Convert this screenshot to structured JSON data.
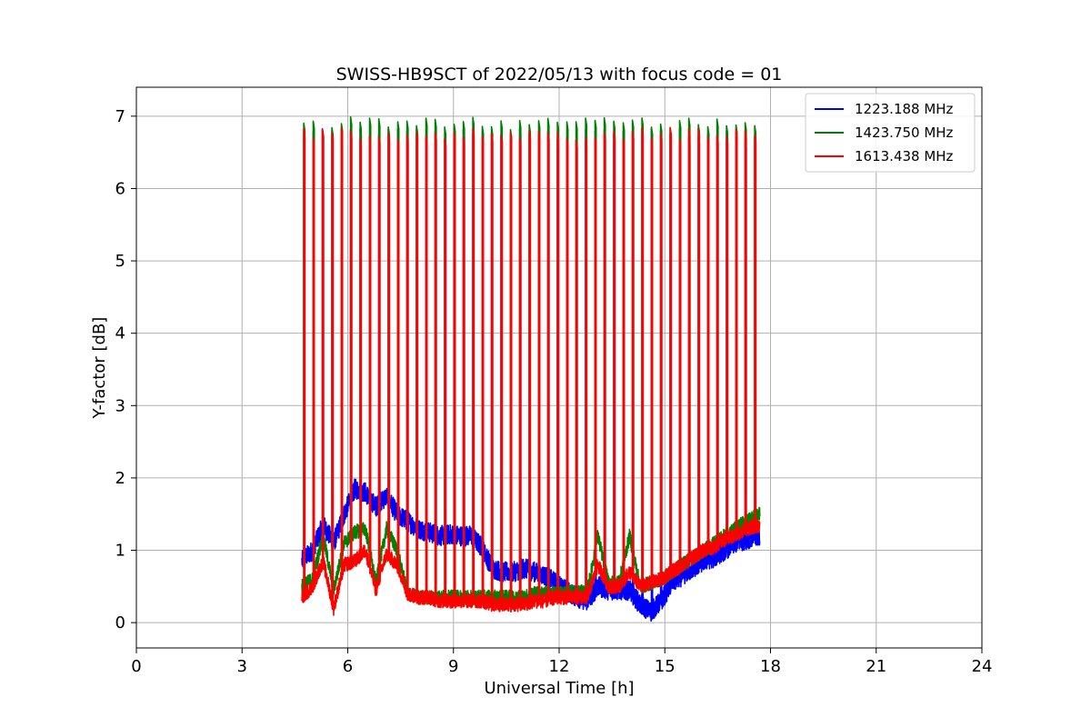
{
  "chart_data": {
    "type": "line",
    "title": "SWISS-HB9SCT of 2022/05/13 with focus code = 01",
    "xlabel": "Universal Time [h]",
    "ylabel": "Y-factor [dB]",
    "xlim": [
      0,
      24
    ],
    "ylim": [
      -0.35,
      7.4
    ],
    "xticks": [
      0,
      3,
      6,
      9,
      12,
      15,
      18,
      21,
      24
    ],
    "yticks": [
      0,
      1,
      2,
      3,
      4,
      5,
      6,
      7
    ],
    "grid": true,
    "legend_position": "top-right",
    "calibration_spike_times_h": [
      4.75,
      5.02,
      5.28,
      5.55,
      5.82,
      6.08,
      6.35,
      6.62,
      6.88,
      7.15,
      7.42,
      7.68,
      7.95,
      8.22,
      8.48,
      8.75,
      9.02,
      9.28,
      9.55,
      9.82,
      10.08,
      10.35,
      10.62,
      10.88,
      11.15,
      11.42,
      11.68,
      11.95,
      12.22,
      12.48,
      12.75,
      13.02,
      13.28,
      13.55,
      13.82,
      14.08,
      14.35,
      14.62,
      14.88,
      15.15,
      15.42,
      15.68,
      15.95,
      16.22,
      16.48,
      16.75,
      17.02,
      17.28,
      17.55
    ],
    "series": [
      {
        "name": "1223.188 MHz",
        "color": "#0000ff",
        "spike_peak_db": 6.75,
        "baseline": {
          "x": [
            4.7,
            5.0,
            5.3,
            5.6,
            5.9,
            6.2,
            6.5,
            6.8,
            7.1,
            7.4,
            7.7,
            8.0,
            8.3,
            8.6,
            8.9,
            9.2,
            9.5,
            9.8,
            10.1,
            10.4,
            10.7,
            11.0,
            11.3,
            11.6,
            11.9,
            12.2,
            12.5,
            12.8,
            13.1,
            13.4,
            13.7,
            14.0,
            14.3,
            14.6,
            14.9,
            15.2,
            15.5,
            15.8,
            16.1,
            16.4,
            16.7,
            17.0,
            17.3,
            17.7
          ],
          "y": [
            0.85,
            1.0,
            1.35,
            1.1,
            1.5,
            1.85,
            1.8,
            1.6,
            1.75,
            1.5,
            1.4,
            1.3,
            1.25,
            1.2,
            1.22,
            1.2,
            1.2,
            1.05,
            0.75,
            0.7,
            0.7,
            0.75,
            0.7,
            0.65,
            0.55,
            0.45,
            0.35,
            0.3,
            0.5,
            0.45,
            0.45,
            0.45,
            0.25,
            0.15,
            0.3,
            0.55,
            0.65,
            0.75,
            0.85,
            0.9,
            1.0,
            1.1,
            1.15,
            1.2
          ]
        }
      },
      {
        "name": "1423.750 MHz",
        "color": "#008000",
        "spike_peak_db": 6.9,
        "baseline": {
          "x": [
            4.7,
            5.0,
            5.3,
            5.6,
            5.9,
            6.2,
            6.5,
            6.8,
            7.1,
            7.4,
            7.7,
            8.0,
            8.3,
            8.6,
            8.9,
            9.2,
            9.5,
            9.8,
            10.1,
            10.4,
            10.7,
            11.0,
            11.3,
            11.6,
            11.9,
            12.2,
            12.5,
            12.8,
            13.1,
            13.4,
            13.7,
            14.0,
            14.3,
            14.6,
            14.9,
            15.2,
            15.5,
            15.8,
            16.1,
            16.4,
            16.7,
            17.0,
            17.3,
            17.7
          ],
          "y": [
            0.5,
            0.6,
            1.2,
            0.45,
            1.1,
            1.25,
            1.3,
            0.55,
            1.3,
            1.0,
            0.4,
            0.35,
            0.35,
            0.35,
            0.35,
            0.35,
            0.35,
            0.35,
            0.35,
            0.35,
            0.35,
            0.35,
            0.4,
            0.4,
            0.4,
            0.42,
            0.42,
            0.42,
            1.2,
            0.55,
            0.55,
            1.2,
            0.5,
            0.55,
            0.6,
            0.7,
            0.8,
            0.9,
            1.0,
            1.1,
            1.2,
            1.3,
            1.4,
            1.5
          ]
        }
      },
      {
        "name": "1613.438 MHz",
        "color": "#ff0000",
        "spike_peak_db": 6.75,
        "baseline": {
          "x": [
            4.7,
            5.0,
            5.3,
            5.6,
            5.9,
            6.2,
            6.5,
            6.8,
            7.1,
            7.4,
            7.7,
            8.0,
            8.3,
            8.6,
            8.9,
            9.2,
            9.5,
            9.8,
            10.1,
            10.4,
            10.7,
            11.0,
            11.3,
            11.6,
            11.9,
            12.2,
            12.5,
            12.8,
            13.1,
            13.4,
            13.7,
            14.0,
            14.3,
            14.6,
            14.9,
            15.2,
            15.5,
            15.8,
            16.1,
            16.4,
            16.7,
            17.0,
            17.3,
            17.7
          ],
          "y": [
            0.35,
            0.5,
            0.85,
            0.2,
            0.8,
            0.85,
            1.0,
            0.45,
            0.95,
            0.8,
            0.4,
            0.35,
            0.35,
            0.3,
            0.3,
            0.3,
            0.3,
            0.3,
            0.25,
            0.25,
            0.25,
            0.25,
            0.3,
            0.3,
            0.35,
            0.35,
            0.35,
            0.35,
            0.8,
            0.5,
            0.5,
            0.7,
            0.5,
            0.55,
            0.6,
            0.7,
            0.8,
            0.9,
            1.0,
            1.05,
            1.15,
            1.2,
            1.3,
            1.35
          ]
        }
      }
    ]
  }
}
